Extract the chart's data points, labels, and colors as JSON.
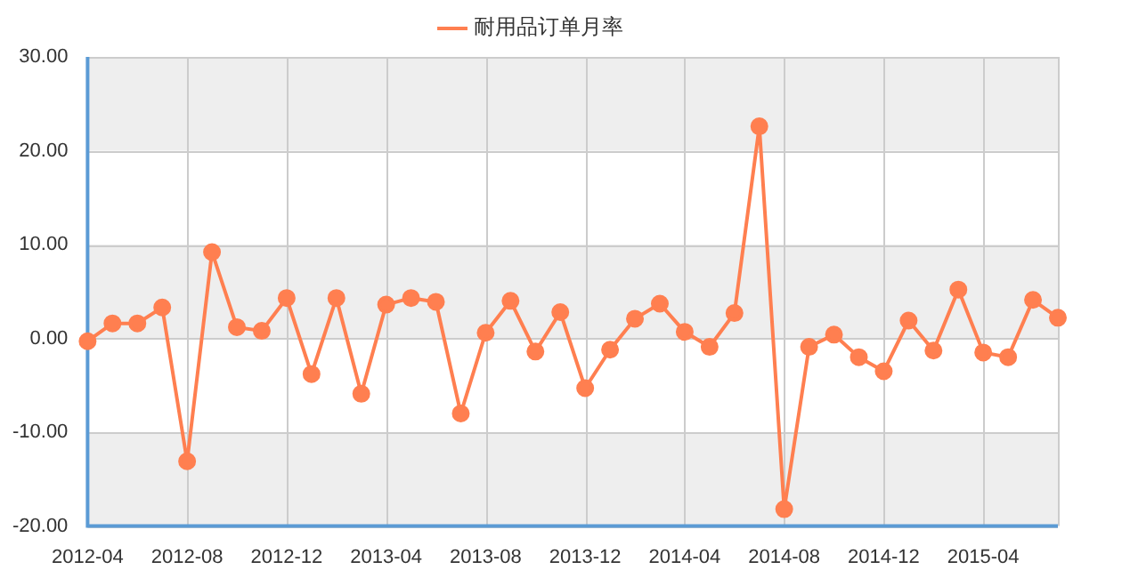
{
  "chart_data": {
    "type": "line",
    "categories": [
      "2012-04",
      null,
      null,
      null,
      "2012-08",
      null,
      null,
      null,
      "2012-12",
      null,
      null,
      null,
      "2013-04",
      null,
      null,
      null,
      "2013-08",
      null,
      null,
      null,
      "2013-12",
      null,
      null,
      null,
      "2014-04",
      null,
      null,
      null,
      "2014-08",
      null,
      null,
      null,
      "2014-12",
      null,
      null,
      null,
      "2015-04",
      null,
      null,
      null
    ],
    "series": [
      {
        "name": "耐用品订单月率",
        "color": "#ff7f50",
        "values": [
          -0.3,
          1.6,
          1.6,
          3.3,
          -13.1,
          9.2,
          1.2,
          0.8,
          4.3,
          -3.8,
          4.3,
          -5.9,
          3.6,
          4.3,
          3.9,
          -8.0,
          0.6,
          4.0,
          -1.4,
          2.8,
          -5.3,
          -1.2,
          2.1,
          3.7,
          0.7,
          -0.9,
          2.7,
          22.6,
          -18.2,
          -0.9,
          0.4,
          -2.0,
          -3.5,
          1.9,
          -1.3,
          5.2,
          -1.5,
          -2.0,
          4.1,
          2.2
        ]
      }
    ],
    "ylim": [
      -20,
      30
    ],
    "yticks": [
      {
        "value": -20,
        "label": "-20.00"
      },
      {
        "value": -10,
        "label": "-10.00"
      },
      {
        "value": 0,
        "label": "0.00"
      },
      {
        "value": 10,
        "label": "10.00"
      },
      {
        "value": 20,
        "label": "20.00"
      },
      {
        "value": 30,
        "label": "30.00"
      }
    ],
    "grid": true,
    "legend": "top",
    "marker": "circle",
    "line_style": "solid"
  }
}
